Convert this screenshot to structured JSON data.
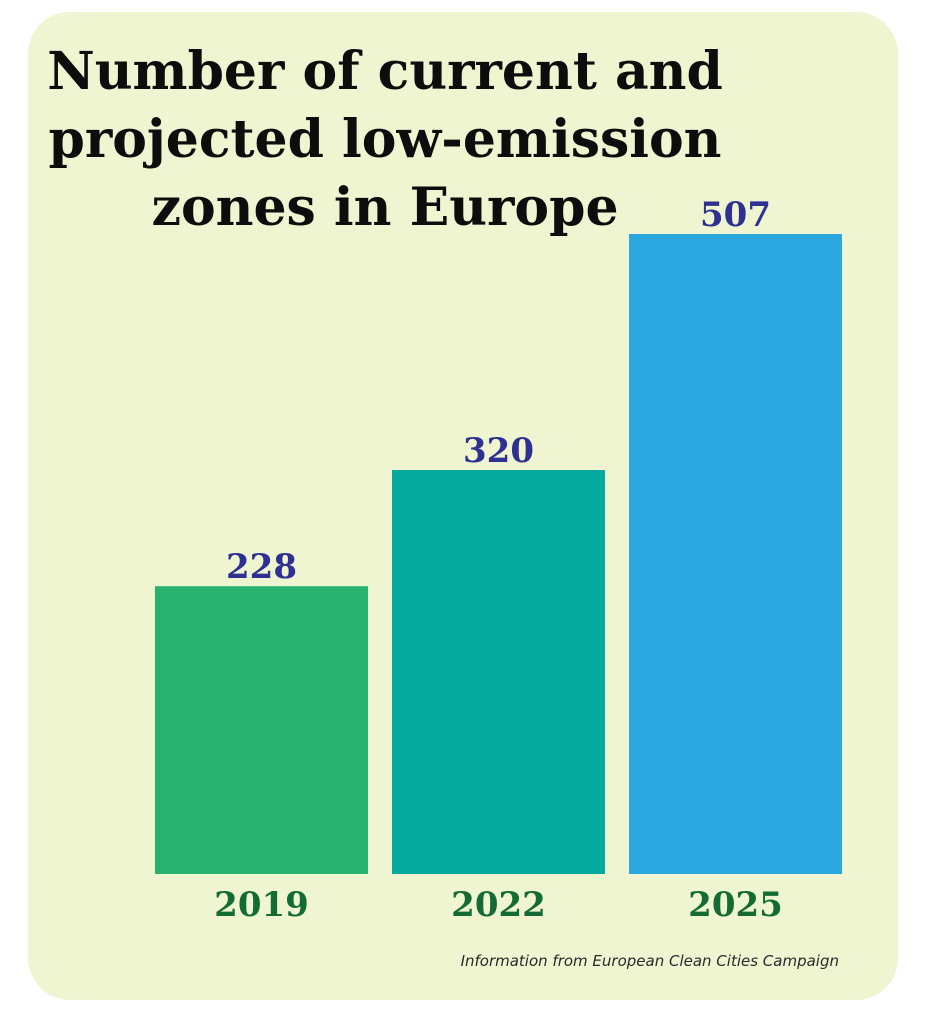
{
  "title_lines": [
    "Number of current and",
    "projected low-emission",
    "zones in Europe"
  ],
  "source_note": "Information from European Clean Cities Campaign",
  "chart_data": {
    "type": "bar",
    "title": "Number of current and projected low-emission zones in Europe",
    "categories": [
      "2019",
      "2022",
      "2025"
    ],
    "values": [
      228,
      320,
      507
    ],
    "colors": [
      "#27b36f",
      "#02a99c",
      "#2ba8e0"
    ],
    "xlabel": "",
    "ylabel": "",
    "ylim": [
      0,
      507
    ],
    "grid": false,
    "legend": "none"
  }
}
